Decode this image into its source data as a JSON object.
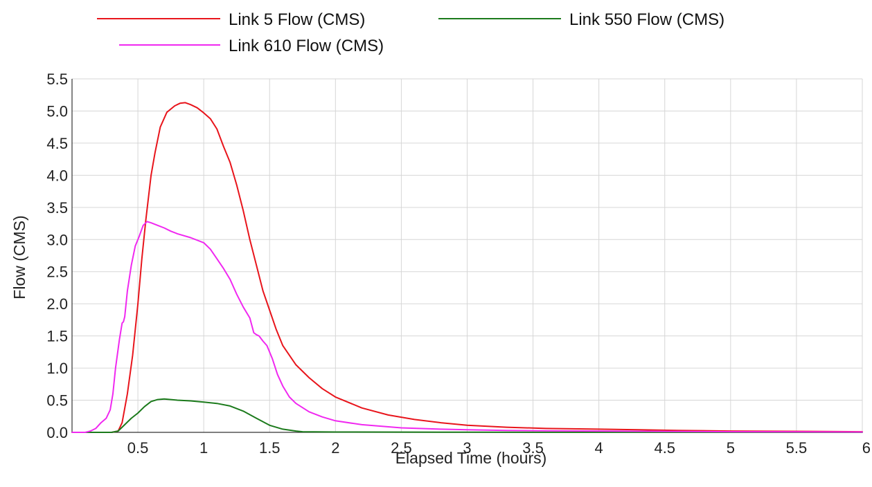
{
  "chart_data": {
    "type": "line",
    "title": "",
    "xlabel": "Elapsed Time (hours)",
    "ylabel": "Flow (CMS)",
    "xlim": [
      0,
      6
    ],
    "ylim": [
      0,
      5.5
    ],
    "grid": true,
    "legend_position": "top",
    "x_ticks": [
      {
        "value": 0.5,
        "label": "0.5"
      },
      {
        "value": 1,
        "label": "1"
      },
      {
        "value": 1.5,
        "label": "1.5"
      },
      {
        "value": 2,
        "label": "2"
      },
      {
        "value": 2.5,
        "label": "2.5"
      },
      {
        "value": 3,
        "label": "3"
      },
      {
        "value": 3.5,
        "label": "3.5"
      },
      {
        "value": 4,
        "label": "4"
      },
      {
        "value": 4.5,
        "label": "4.5"
      },
      {
        "value": 5,
        "label": "5"
      },
      {
        "value": 5.5,
        "label": "5.5"
      },
      {
        "value": 6,
        "label": "6"
      }
    ],
    "y_ticks": [
      {
        "value": 0,
        "label": "0.0"
      },
      {
        "value": 0.5,
        "label": "0.5"
      },
      {
        "value": 1,
        "label": "1.0"
      },
      {
        "value": 1.5,
        "label": "1.5"
      },
      {
        "value": 2,
        "label": "2.0"
      },
      {
        "value": 2.5,
        "label": "2.5"
      },
      {
        "value": 3,
        "label": "3.0"
      },
      {
        "value": 3.5,
        "label": "3.5"
      },
      {
        "value": 4,
        "label": "4.0"
      },
      {
        "value": 4.5,
        "label": "4.5"
      },
      {
        "value": 5,
        "label": "5.0"
      },
      {
        "value": 5.5,
        "label": "5.5"
      }
    ],
    "series": [
      {
        "name": "Link 5 Flow (CMS)",
        "color": "#e8141b",
        "x": [
          0,
          0.3,
          0.35,
          0.38,
          0.42,
          0.46,
          0.5,
          0.53,
          0.56,
          0.6,
          0.63,
          0.67,
          0.72,
          0.78,
          0.82,
          0.86,
          0.9,
          0.95,
          1.0,
          1.05,
          1.1,
          1.15,
          1.2,
          1.25,
          1.3,
          1.35,
          1.4,
          1.45,
          1.5,
          1.55,
          1.6,
          1.7,
          1.8,
          1.9,
          2.0,
          2.2,
          2.4,
          2.6,
          2.8,
          3.0,
          3.3,
          3.6,
          4.0,
          4.3,
          4.6,
          5.0,
          5.6,
          6.0
        ],
        "y": [
          0,
          0,
          0.02,
          0.15,
          0.6,
          1.2,
          2.0,
          2.7,
          3.3,
          4.0,
          4.35,
          4.75,
          4.98,
          5.08,
          5.12,
          5.13,
          5.1,
          5.05,
          4.97,
          4.88,
          4.72,
          4.45,
          4.2,
          3.85,
          3.45,
          3.0,
          2.6,
          2.2,
          1.9,
          1.6,
          1.35,
          1.05,
          0.85,
          0.68,
          0.55,
          0.38,
          0.27,
          0.2,
          0.15,
          0.11,
          0.08,
          0.06,
          0.05,
          0.04,
          0.03,
          0.02,
          0.015,
          0.01
        ]
      },
      {
        "name": "Link 550 Flow (CMS)",
        "color": "#1b7a1b",
        "x": [
          0,
          0.3,
          0.35,
          0.4,
          0.45,
          0.5,
          0.55,
          0.6,
          0.65,
          0.7,
          0.8,
          0.9,
          1.0,
          1.1,
          1.2,
          1.3,
          1.4,
          1.5,
          1.6,
          1.7,
          1.75,
          2.0,
          3.0,
          6.0
        ],
        "y": [
          0,
          0,
          0.02,
          0.12,
          0.22,
          0.3,
          0.4,
          0.48,
          0.51,
          0.52,
          0.5,
          0.49,
          0.47,
          0.45,
          0.41,
          0.33,
          0.22,
          0.11,
          0.05,
          0.02,
          0.01,
          0.005,
          0.002,
          0.001
        ]
      },
      {
        "name": "Link 610 Flow (CMS)",
        "color": "#f028f0",
        "x": [
          0,
          0.1,
          0.14,
          0.18,
          0.22,
          0.26,
          0.29,
          0.31,
          0.33,
          0.36,
          0.38,
          0.39,
          0.4,
          0.42,
          0.45,
          0.48,
          0.51,
          0.54,
          0.57,
          0.6,
          0.65,
          0.7,
          0.75,
          0.8,
          0.9,
          1.0,
          1.05,
          1.1,
          1.15,
          1.2,
          1.25,
          1.3,
          1.35,
          1.38,
          1.4,
          1.42,
          1.45,
          1.48,
          1.52,
          1.56,
          1.6,
          1.65,
          1.7,
          1.8,
          1.9,
          2.0,
          2.2,
          2.5,
          2.8,
          3.0,
          3.3,
          3.6,
          4.0,
          4.5,
          5.0,
          6.0
        ],
        "y": [
          0,
          0,
          0.02,
          0.06,
          0.15,
          0.22,
          0.35,
          0.6,
          1.0,
          1.45,
          1.7,
          1.72,
          1.8,
          2.2,
          2.6,
          2.9,
          3.05,
          3.22,
          3.28,
          3.26,
          3.22,
          3.18,
          3.13,
          3.09,
          3.03,
          2.95,
          2.85,
          2.7,
          2.55,
          2.38,
          2.15,
          1.95,
          1.78,
          1.55,
          1.52,
          1.5,
          1.42,
          1.35,
          1.15,
          0.9,
          0.72,
          0.55,
          0.45,
          0.32,
          0.24,
          0.18,
          0.12,
          0.07,
          0.05,
          0.04,
          0.03,
          0.025,
          0.02,
          0.015,
          0.01,
          0.005
        ]
      }
    ]
  }
}
